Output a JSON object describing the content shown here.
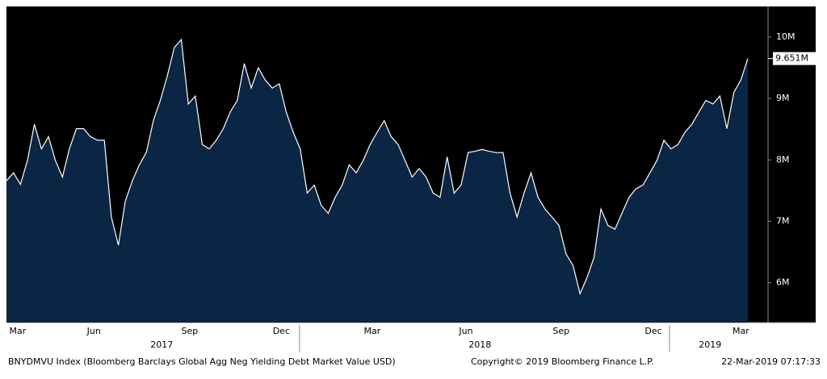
{
  "chart_data": {
    "type": "area",
    "series": [
      {
        "name": "BNYDMVU Index",
        "color": "#ffffff",
        "fill": "#0b2545",
        "values": [
          7.66,
          7.79,
          7.6,
          7.99,
          8.58,
          8.18,
          8.38,
          7.99,
          7.72,
          8.18,
          8.51,
          8.51,
          8.38,
          8.32,
          8.32,
          7.07,
          6.61,
          7.33,
          7.66,
          7.92,
          8.12,
          8.64,
          8.97,
          9.37,
          9.83,
          9.96,
          8.91,
          9.04,
          8.25,
          8.18,
          8.32,
          8.51,
          8.78,
          8.97,
          9.57,
          9.17,
          9.5,
          9.3,
          9.17,
          9.24,
          8.78,
          8.45,
          8.18,
          7.46,
          7.59,
          7.26,
          7.13,
          7.39,
          7.59,
          7.92,
          7.79,
          7.99,
          8.25,
          8.45,
          8.64,
          8.38,
          8.25,
          7.99,
          7.72,
          7.86,
          7.72,
          7.46,
          7.39,
          8.05,
          7.46,
          7.59,
          8.12,
          8.14,
          8.17,
          8.14,
          8.12,
          8.12,
          7.46,
          7.07,
          7.46,
          7.79,
          7.39,
          7.2,
          7.07,
          6.93,
          6.47,
          6.28,
          5.82,
          6.08,
          6.41,
          7.2,
          6.93,
          6.87,
          7.13,
          7.39,
          7.53,
          7.59,
          7.79,
          7.99,
          8.32,
          8.18,
          8.25,
          8.45,
          8.58,
          8.78,
          8.97,
          8.91,
          9.04,
          8.51,
          9.1,
          9.3,
          9.651
        ]
      }
    ],
    "last_price": {
      "value": 9.651,
      "label": "9.651M"
    },
    "xlim": [
      0,
      106
    ],
    "xticks": [
      {
        "value": 1.6,
        "label": "Mar"
      },
      {
        "value": 12.5,
        "label": "Jun"
      },
      {
        "value": 26.2,
        "label": "Sep"
      },
      {
        "value": 39.3,
        "label": "Dec"
      },
      {
        "value": 52.3,
        "label": "Mar"
      },
      {
        "value": 65.7,
        "label": "Jun"
      },
      {
        "value": 79.3,
        "label": "Sep"
      },
      {
        "value": 92.5,
        "label": "Dec"
      },
      {
        "value": 105,
        "label": "Mar"
      }
    ],
    "year_labels": [
      {
        "value": 22.2,
        "label": "2017"
      },
      {
        "value": 67.7,
        "label": "2018"
      },
      {
        "value": 100.6,
        "label": "2019"
      }
    ],
    "year_breaks": [
      41.9,
      94.8
    ],
    "ylim": [
      5.35,
      10.5
    ],
    "yticks": [
      {
        "value": 6,
        "label": "6M"
      },
      {
        "value": 7,
        "label": "7M"
      },
      {
        "value": 8,
        "label": "8M"
      },
      {
        "value": 9,
        "label": "9M"
      },
      {
        "value": 10,
        "label": "10M"
      }
    ],
    "footer_left": "BNYDMVU Index (Bloomberg Barclays Global Agg Neg Yielding Debt Market Value USD)",
    "footer_center": "Copyright© 2019 Bloomberg Finance L.P.",
    "footer_right": "22-Mar-2019 07:17:33"
  }
}
